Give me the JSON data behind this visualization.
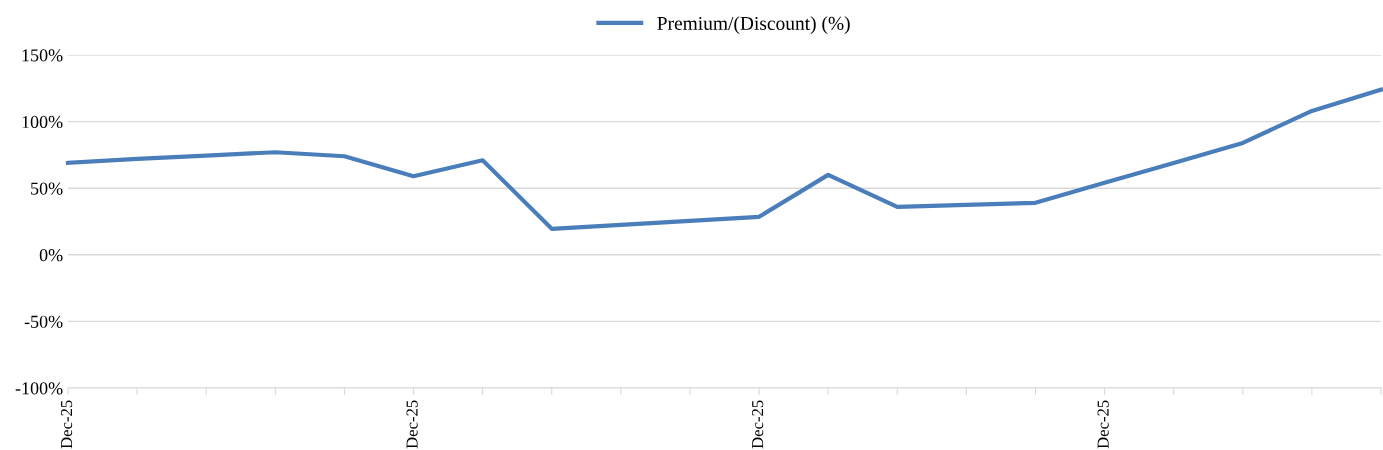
{
  "chart_data": {
    "type": "line",
    "categories": [
      "Dec-25",
      null,
      null,
      null,
      null,
      "Dec-25",
      null,
      null,
      null,
      null,
      "Dec-25",
      null,
      null,
      null,
      null,
      "Dec-25",
      null,
      null,
      null,
      null
    ],
    "series": [
      {
        "name": "Premium/(Discount) (%)",
        "color": "#4a7ebb",
        "values": [
          69,
          72,
          74.5,
          77,
          74,
          59,
          71,
          19.5,
          22.5,
          25.5,
          28.5,
          60,
          36,
          37.5,
          39,
          54,
          69,
          84,
          108,
          124
        ]
      }
    ],
    "ylim": [
      -100,
      150
    ],
    "yticks": [
      {
        "value": -100,
        "label": "-100%"
      },
      {
        "value": -50,
        "label": "-50%"
      },
      {
        "value": 0,
        "label": "0%"
      },
      {
        "value": 50,
        "label": "50%"
      },
      {
        "value": 100,
        "label": "100%"
      },
      {
        "value": 150,
        "label": "150%"
      }
    ],
    "grid": "y",
    "legend": "top",
    "marker": "none",
    "line_style": "solid"
  }
}
